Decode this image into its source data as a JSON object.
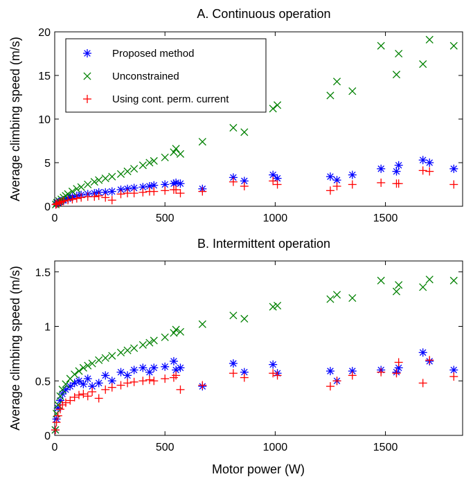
{
  "colors": {
    "proposed": "#0000ff",
    "unconstrained": "#008000",
    "cont_current": "#ff0000"
  },
  "chart_data": [
    {
      "type": "scatter",
      "title": "A. Continuous operation",
      "xlabel": "",
      "ylabel": "Average climbing speed (m/s)",
      "xlim": [
        0,
        1850
      ],
      "ylim": [
        0,
        20
      ],
      "xticks": [
        0,
        500,
        1000,
        1500
      ],
      "xtick_labels": [
        "0",
        "500",
        "1000",
        "1500"
      ],
      "yticks": [
        0,
        5,
        10,
        15,
        20
      ],
      "ytick_labels": [
        "0",
        "5",
        "10",
        "15",
        "20"
      ],
      "legend_position": "top-left",
      "series": [
        {
          "name": "Proposed method",
          "marker": "asterisk",
          "color": "#0000ff",
          "x": [
            5,
            10,
            15,
            20,
            25,
            30,
            40,
            50,
            60,
            70,
            80,
            100,
            120,
            150,
            180,
            200,
            230,
            260,
            300,
            330,
            360,
            400,
            430,
            450,
            500,
            540,
            550,
            570,
            670,
            810,
            860,
            990,
            1010,
            1250,
            1280,
            1350,
            1480,
            1550,
            1560,
            1670,
            1700,
            1810
          ],
          "y": [
            0.2,
            0.3,
            0.4,
            0.5,
            0.5,
            0.6,
            0.7,
            0.8,
            0.9,
            1.0,
            1.1,
            1.2,
            1.3,
            1.4,
            1.5,
            1.6,
            1.6,
            1.7,
            1.9,
            2.0,
            2.1,
            2.2,
            2.3,
            2.4,
            2.5,
            2.6,
            2.7,
            2.6,
            2.0,
            3.3,
            2.9,
            3.6,
            3.2,
            3.4,
            3.0,
            3.6,
            4.3,
            4.0,
            4.7,
            5.3,
            5.0,
            4.3
          ]
        },
        {
          "name": "Unconstrained",
          "marker": "x",
          "color": "#008000",
          "x": [
            5,
            10,
            20,
            30,
            40,
            50,
            60,
            80,
            100,
            120,
            150,
            180,
            200,
            230,
            260,
            300,
            330,
            360,
            400,
            430,
            450,
            500,
            540,
            550,
            570,
            670,
            810,
            860,
            990,
            1010,
            1250,
            1280,
            1350,
            1480,
            1550,
            1560,
            1670,
            1700,
            1810
          ],
          "y": [
            0.2,
            0.4,
            0.6,
            0.8,
            1.0,
            1.2,
            1.4,
            1.7,
            2.0,
            2.2,
            2.5,
            2.8,
            3.0,
            3.2,
            3.4,
            3.7,
            4.0,
            4.3,
            4.7,
            5.0,
            5.2,
            5.6,
            6.2,
            6.6,
            6.0,
            7.4,
            9.0,
            8.5,
            11.2,
            11.6,
            12.7,
            14.3,
            13.2,
            18.4,
            15.1,
            17.5,
            16.3,
            19.1,
            18.4
          ]
        },
        {
          "name": "Using cont. perm. current",
          "marker": "plus",
          "color": "#ff0000",
          "x": [
            5,
            10,
            20,
            30,
            40,
            60,
            80,
            100,
            120,
            150,
            180,
            200,
            230,
            260,
            300,
            330,
            360,
            400,
            430,
            450,
            500,
            540,
            550,
            570,
            670,
            810,
            860,
            990,
            1010,
            1250,
            1280,
            1350,
            1480,
            1550,
            1560,
            1670,
            1700,
            1810
          ],
          "y": [
            0.2,
            0.3,
            0.4,
            0.5,
            0.6,
            0.7,
            0.8,
            0.9,
            1.0,
            1.1,
            1.1,
            1.2,
            1.0,
            0.7,
            1.4,
            1.5,
            1.5,
            1.6,
            1.7,
            1.7,
            1.8,
            1.9,
            1.9,
            1.5,
            1.7,
            2.8,
            2.3,
            2.9,
            2.5,
            1.8,
            2.3,
            2.5,
            2.7,
            2.6,
            2.6,
            4.1,
            4.0,
            2.5
          ]
        }
      ]
    },
    {
      "type": "scatter",
      "title": "B. Intermittent operation",
      "xlabel": "Motor power (W)",
      "ylabel": "Average climbing speed (m/s)",
      "xlim": [
        0,
        1850
      ],
      "ylim": [
        0,
        1.6
      ],
      "xticks": [
        0,
        500,
        1000,
        1500
      ],
      "xtick_labels": [
        "0",
        "500",
        "1000",
        "1500"
      ],
      "yticks": [
        0,
        0.5,
        1,
        1.5
      ],
      "ytick_labels": [
        "0",
        "0.5",
        "1",
        "1.5"
      ],
      "series": [
        {
          "name": "Proposed method",
          "marker": "asterisk",
          "color": "#0000ff",
          "x": [
            3,
            8,
            15,
            25,
            35,
            50,
            70,
            90,
            110,
            130,
            150,
            170,
            200,
            230,
            260,
            300,
            330,
            360,
            400,
            430,
            450,
            500,
            540,
            550,
            570,
            670,
            810,
            860,
            990,
            1010,
            1250,
            1280,
            1350,
            1480,
            1550,
            1560,
            1670,
            1700,
            1810
          ],
          "y": [
            0.05,
            0.15,
            0.25,
            0.32,
            0.38,
            0.42,
            0.45,
            0.48,
            0.5,
            0.47,
            0.52,
            0.45,
            0.48,
            0.55,
            0.5,
            0.58,
            0.55,
            0.6,
            0.62,
            0.58,
            0.62,
            0.63,
            0.68,
            0.6,
            0.62,
            0.45,
            0.66,
            0.58,
            0.65,
            0.57,
            0.59,
            0.5,
            0.59,
            0.6,
            0.58,
            0.62,
            0.76,
            0.68,
            0.6
          ]
        },
        {
          "name": "Unconstrained",
          "marker": "x",
          "color": "#008000",
          "x": [
            3,
            8,
            15,
            25,
            35,
            50,
            70,
            90,
            110,
            130,
            150,
            170,
            200,
            230,
            260,
            300,
            330,
            360,
            400,
            430,
            450,
            500,
            540,
            550,
            570,
            670,
            810,
            860,
            990,
            1010,
            1250,
            1280,
            1350,
            1480,
            1550,
            1560,
            1670,
            1700,
            1810
          ],
          "y": [
            0.05,
            0.2,
            0.28,
            0.36,
            0.42,
            0.47,
            0.52,
            0.56,
            0.59,
            0.62,
            0.64,
            0.66,
            0.69,
            0.71,
            0.73,
            0.76,
            0.78,
            0.8,
            0.83,
            0.85,
            0.87,
            0.9,
            0.94,
            0.97,
            0.95,
            1.02,
            1.1,
            1.07,
            1.18,
            1.19,
            1.25,
            1.29,
            1.26,
            1.42,
            1.32,
            1.38,
            1.36,
            1.43,
            1.42
          ]
        },
        {
          "name": "Using cont. perm. current",
          "marker": "plus",
          "color": "#ff0000",
          "x": [
            3,
            8,
            15,
            25,
            35,
            50,
            70,
            90,
            110,
            130,
            150,
            170,
            200,
            230,
            260,
            300,
            330,
            360,
            400,
            430,
            450,
            500,
            540,
            550,
            570,
            670,
            810,
            860,
            990,
            1010,
            1250,
            1280,
            1350,
            1480,
            1550,
            1560,
            1670,
            1700,
            1810
          ],
          "y": [
            0.05,
            0.12,
            0.18,
            0.24,
            0.28,
            0.3,
            0.32,
            0.35,
            0.37,
            0.38,
            0.36,
            0.4,
            0.34,
            0.42,
            0.44,
            0.46,
            0.48,
            0.49,
            0.5,
            0.51,
            0.5,
            0.52,
            0.53,
            0.55,
            0.42,
            0.46,
            0.57,
            0.53,
            0.57,
            0.55,
            0.45,
            0.5,
            0.55,
            0.58,
            0.57,
            0.67,
            0.48,
            0.69,
            0.54
          ]
        }
      ]
    }
  ]
}
